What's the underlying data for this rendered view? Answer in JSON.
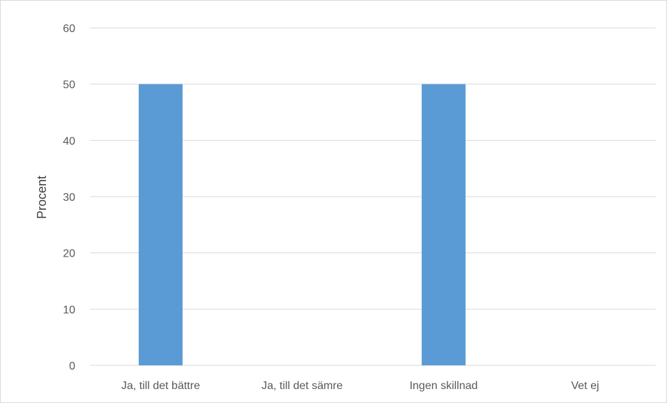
{
  "chart_data": {
    "type": "bar",
    "title": "",
    "xlabel": "",
    "ylabel": "Procent",
    "categories": [
      "Ja, till det bättre",
      "Ja, till det sämre",
      "Ingen skillnad",
      "Vet ej"
    ],
    "values": [
      50,
      0,
      50,
      0
    ],
    "ylim": [
      0,
      60
    ],
    "yticks": [
      0,
      10,
      20,
      30,
      40,
      50,
      60
    ],
    "grid": true,
    "legend": "none",
    "bar_color": "#5b9bd5",
    "grid_color": "#d9d9d9"
  }
}
